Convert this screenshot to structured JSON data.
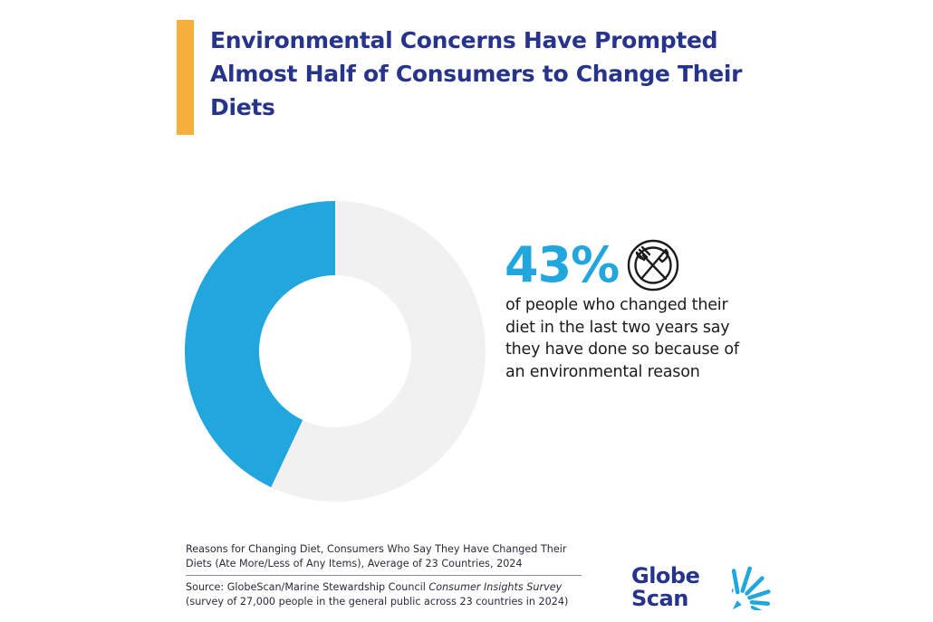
{
  "title": "Environmental Concerns Have Prompted Almost Half of Consumers to Change Their Diets",
  "colors": {
    "accent_bar": "#F6AE3C",
    "title": "#27348B",
    "highlight": "#21A6DE",
    "remainder": "#F1F1F1",
    "icon": "#1C1C1C"
  },
  "stat": {
    "value": "43%",
    "description": "of people who changed their diet in the last two years say they have done so because of an environmental reason",
    "icon": "plate-fork-knife-icon"
  },
  "chart_data": {
    "type": "pie",
    "style": "donut",
    "slices": [
      {
        "value": 43
      },
      {
        "value": 57
      }
    ]
  },
  "caption": {
    "text": "Reasons for Changing Diet, Consumers Who Say They Have Changed Their Diets (Ate More/Less of Any Items), Average of 23 Countries, 2024",
    "source_prefix": "Source: GlobeScan/Marine Stewardship Council ",
    "source_title": "Consumer Insights Survey",
    "source_note": "(survey of 27,000 people in the general public across 23 countries in 2024)"
  },
  "logo": {
    "line1": "Globe",
    "line2": "Scan",
    "color_text": "#27348B",
    "color_burst": "#21A6DE",
    "icon": "globescan-burst-icon"
  }
}
